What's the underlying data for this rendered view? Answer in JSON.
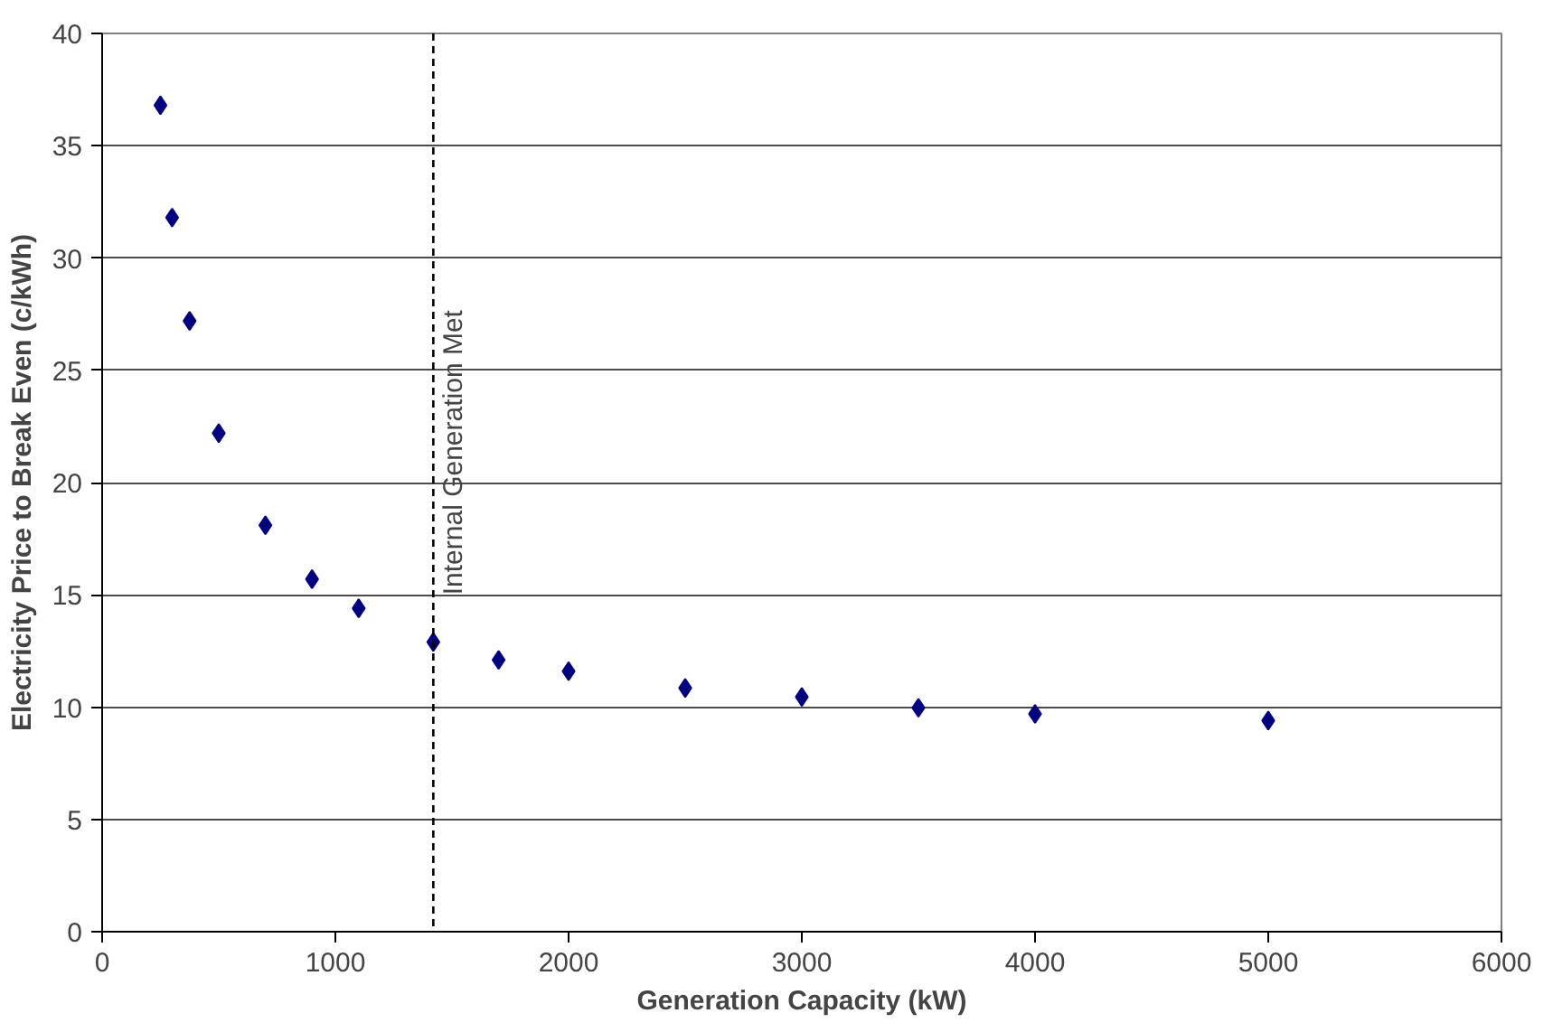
{
  "chart_data": {
    "type": "scatter",
    "xlabel": "Generation Capacity (kW)",
    "ylabel": "Electricity Price to Break Even (c/kWh)",
    "x": [
      250,
      300,
      375,
      500,
      700,
      900,
      1100,
      1420,
      1700,
      2000,
      2500,
      3000,
      3500,
      4000,
      5000
    ],
    "series": [
      {
        "color": "#000080",
        "values": [
          36.8,
          31.8,
          27.2,
          22.2,
          18.1,
          15.7,
          14.4,
          12.9,
          12.1,
          11.6,
          10.85,
          10.45,
          9.97,
          9.7,
          9.4
        ]
      }
    ],
    "xlim": [
      0,
      6000
    ],
    "xticks": [
      0,
      1000,
      2000,
      3000,
      4000,
      5000,
      6000
    ],
    "ylim": [
      0,
      40
    ],
    "yticks": [
      0,
      5,
      10,
      15,
      20,
      25,
      30,
      35,
      40
    ],
    "ref_lines": [
      {
        "axis": "x",
        "value": 1420,
        "label": "Internal Generation Met",
        "color": "#000000",
        "line_style": "dashed"
      }
    ],
    "grid": "y",
    "marker": "diamond"
  }
}
